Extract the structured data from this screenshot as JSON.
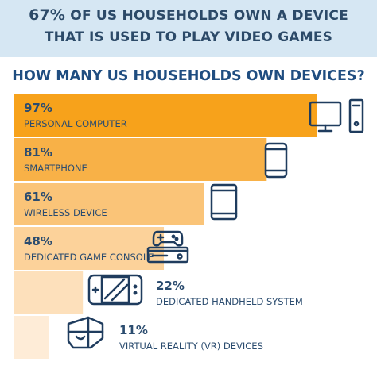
{
  "header": {
    "headline_percent": "67%",
    "headline_line1_rest": " OF US HOUSEHOLDS OWN A DEVICE",
    "headline_line2": "THAT IS USED TO PLAY VIDEO GAMES"
  },
  "chart_data": {
    "type": "bar",
    "title": "HOW MANY US HOUSEHOLDS OWN DEVICES?",
    "orientation": "horizontal",
    "value_unit": "%",
    "categories": [
      "PERSONAL COMPUTER",
      "SMARTPHONE",
      "WIRELESS DEVICE",
      "DEDICATED GAME CONSOLE",
      "DEDICATED HANDHELD SYSTEM",
      "VIRTUAL REALITY (VR) DEVICES"
    ],
    "values": [
      97,
      81,
      61,
      48,
      22,
      11
    ],
    "value_labels": [
      "97%",
      "81%",
      "61%",
      "48%",
      "22%",
      "11%"
    ],
    "icons": [
      "desktop-computer-icon",
      "smartphone-icon",
      "tablet-icon",
      "game-console-icon",
      "handheld-console-icon",
      "vr-headset-icon"
    ],
    "bar_colors": [
      "#f7a21b",
      "#f8b147",
      "#fac478",
      "#fcd29a",
      "#fde0bb",
      "#feecd7"
    ],
    "grid": false,
    "legend": "none"
  },
  "colors": {
    "banner_bg": "#d6e7f3",
    "headline_text": "#2c4a68",
    "title_text": "#1f4d80",
    "icon_stroke": "#1f3c5e"
  }
}
